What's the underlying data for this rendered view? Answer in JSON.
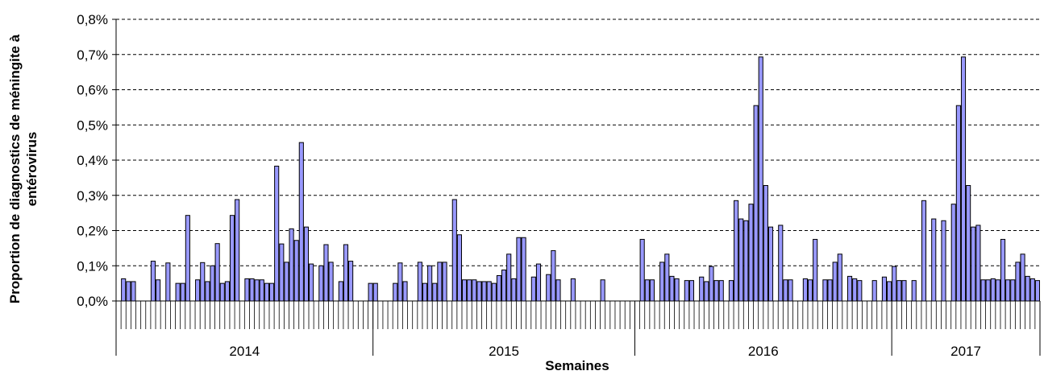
{
  "chart_data": {
    "type": "bar",
    "title": "",
    "ylabel_lines": [
      "Proportion de diagnostics de méningite à",
      "entérovirus"
    ],
    "xlabel": "Semaines",
    "yticks": [
      "0,0%",
      "0,1%",
      "0,2%",
      "0,3%",
      "0,4%",
      "0,5%",
      "0,6%",
      "0,7%",
      "0,8%"
    ],
    "ylim": [
      0,
      0.8
    ],
    "grid": true,
    "bar_color": "#9999FF",
    "bar_edge_color": "#000000",
    "years": [
      {
        "label": "2014",
        "from": 1,
        "to": 52
      },
      {
        "label": "2015",
        "from": 53,
        "to": 105
      },
      {
        "label": "2016",
        "from": 106,
        "to": 157
      },
      {
        "label": "2017",
        "from": 158,
        "to": 187
      }
    ],
    "x": [
      2,
      3,
      4,
      8,
      9,
      11,
      13,
      14,
      15,
      17,
      18,
      19,
      20,
      21,
      22,
      23,
      24,
      25,
      27,
      28,
      29,
      30,
      31,
      32,
      33,
      34,
      35,
      36,
      37,
      38,
      39,
      40,
      42,
      43,
      44,
      46,
      47,
      48,
      52,
      53,
      57,
      58,
      59,
      62,
      63,
      64,
      65,
      66,
      67,
      69,
      70,
      71,
      72,
      73,
      74,
      75,
      76,
      77,
      78,
      79,
      80,
      81,
      82,
      83,
      85,
      86,
      88,
      89,
      90,
      93,
      99,
      107,
      108,
      109,
      111,
      112,
      113,
      114,
      116,
      117,
      119,
      120,
      121,
      122,
      123,
      125,
      126,
      127,
      128,
      129,
      130,
      131,
      132,
      133,
      135,
      136,
      137,
      140,
      141,
      142,
      144,
      145,
      146,
      147,
      149,
      150,
      151,
      154,
      156,
      157,
      158,
      159,
      160,
      162,
      164,
      166,
      168,
      170,
      171,
      172,
      173,
      174,
      175,
      176,
      177,
      178,
      179,
      180,
      181,
      182,
      183,
      184,
      185,
      186,
      187
    ],
    "values": [
      0.063,
      0.055,
      0.055,
      0.113,
      0.06,
      0.108,
      0.05,
      0.05,
      0.243,
      0.06,
      0.109,
      0.055,
      0.1,
      0.163,
      0.05,
      0.055,
      0.243,
      0.288,
      0.063,
      0.063,
      0.06,
      0.06,
      0.05,
      0.05,
      0.383,
      0.162,
      0.11,
      0.205,
      0.172,
      0.45,
      0.21,
      0.105,
      0.1,
      0.16,
      0.11,
      0.055,
      0.16,
      0.113,
      0.05,
      0.05,
      0.05,
      0.108,
      0.055,
      0.11,
      0.05,
      0.1,
      0.05,
      0.11,
      0.11,
      0.288,
      0.188,
      0.06,
      0.06,
      0.06,
      0.055,
      0.055,
      0.055,
      0.05,
      0.072,
      0.088,
      0.133,
      0.063,
      0.18,
      0.18,
      0.068,
      0.105,
      0.075,
      0.143,
      0.06,
      0.063,
      0.06,
      0.175,
      0.06,
      0.06,
      0.11,
      0.133,
      0.07,
      0.063,
      0.058,
      0.058,
      0.068,
      0.055,
      0.098,
      0.058,
      0.058,
      0.058,
      0.285,
      0.233,
      0.228,
      0.275,
      0.555,
      0.693,
      0.328,
      0.21,
      0.215,
      0.06,
      0.06,
      0.063,
      0.06,
      0.175,
      0.06,
      0.06,
      0.11,
      0.133,
      0.07,
      0.063,
      0.058,
      0.058,
      0.068,
      0.055,
      0.098,
      0.058,
      0.058,
      0.058,
      0.285,
      0.233,
      0.228,
      0.275,
      0.555,
      0.693,
      0.328,
      0.21,
      0.215,
      0.06,
      0.06,
      0.063,
      0.06,
      0.175,
      0.06,
      0.06,
      0.11,
      0.133,
      0.07,
      0.063,
      0.058
    ],
    "week_labels_note": ""
  }
}
